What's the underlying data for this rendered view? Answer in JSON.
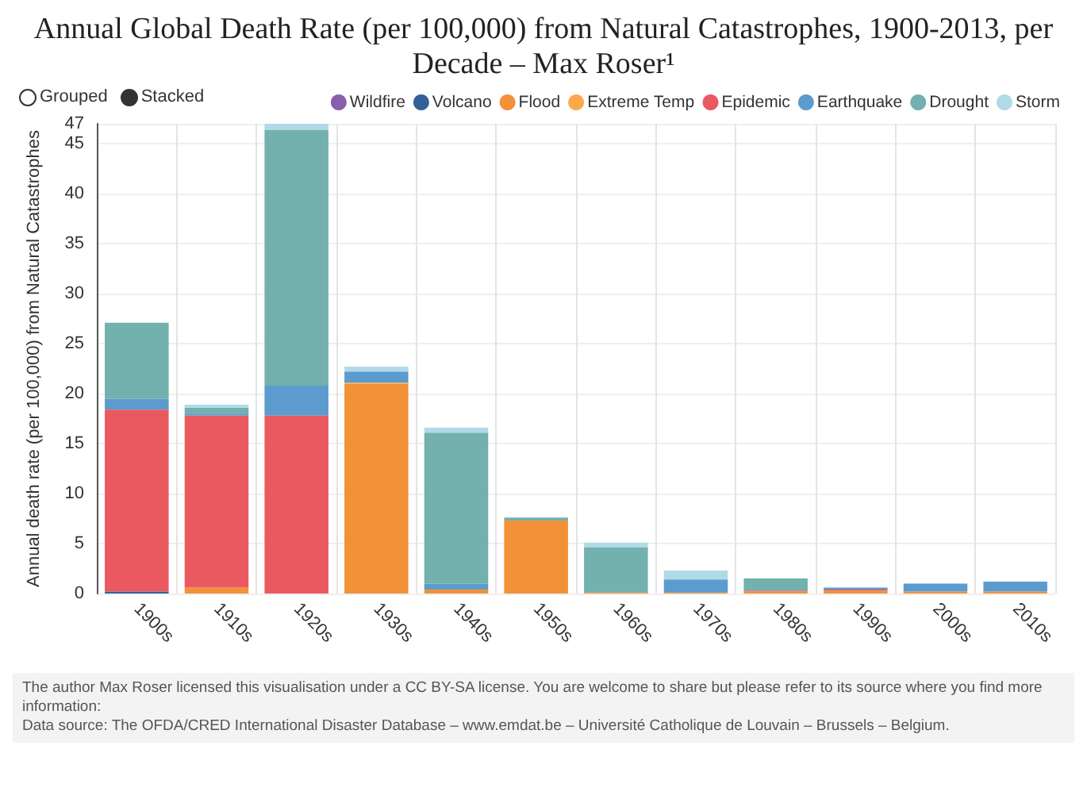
{
  "chart_data": {
    "type": "bar",
    "title": "Annual Global Death Rate (per 100,000) from Natural Catastrophes, 1900-2013, per Decade – Max Roser¹",
    "ylabel": "Annual death rate (per 100,000) from Natural Catastrophes",
    "categories": [
      "1900s",
      "1910s",
      "1920s",
      "1930s",
      "1940s",
      "1950s",
      "1960s",
      "1970s",
      "1980s",
      "1990s",
      "2000s",
      "2010s"
    ],
    "series": [
      {
        "name": "Wildfire",
        "color": "#7b4ea3",
        "values": [
          0,
          0,
          0,
          0,
          0,
          0,
          0,
          0,
          0,
          0,
          0,
          0
        ]
      },
      {
        "name": "Volcano",
        "color": "#1f4e8c",
        "values": [
          0.2,
          0,
          0,
          0,
          0,
          0,
          0,
          0,
          0,
          0,
          0,
          0
        ]
      },
      {
        "name": "Flood",
        "color": "#f28522",
        "values": [
          0,
          0.6,
          0,
          21.0,
          0.4,
          7.3,
          0.1,
          0.1,
          0.2,
          0.3,
          0.2,
          0.2
        ]
      },
      {
        "name": "Extreme Temp",
        "color": "#fb9e3a",
        "values": [
          0,
          0,
          0,
          0.1,
          0,
          0,
          0,
          0,
          0,
          0,
          0,
          0
        ]
      },
      {
        "name": "Epidemic",
        "color": "#e8474f",
        "values": [
          18.2,
          17.2,
          17.8,
          0,
          0,
          0,
          0,
          0,
          0.1,
          0.1,
          0,
          0
        ]
      },
      {
        "name": "Earthquake",
        "color": "#4a90c8",
        "values": [
          1.1,
          0.2,
          3.0,
          1.1,
          0.6,
          0,
          0,
          1.3,
          0,
          0.2,
          0.8,
          1.0
        ]
      },
      {
        "name": "Drought",
        "color": "#63a8a4",
        "values": [
          7.6,
          0.6,
          25.6,
          0,
          15.1,
          0.3,
          4.5,
          0,
          1.2,
          0,
          0,
          0
        ]
      },
      {
        "name": "Storm",
        "color": "#a9d6e5",
        "values": [
          0,
          0.3,
          0.6,
          0.5,
          0.5,
          0,
          0.5,
          0.9,
          null,
          null,
          null,
          null
        ]
      }
    ],
    "stacked": true,
    "ylim": [
      0,
      47
    ],
    "yticks": [
      0,
      5,
      10,
      15,
      20,
      25,
      30,
      35,
      40,
      45,
      47
    ],
    "grid": true,
    "legend": "top right",
    "annotations": [
      "Grouped",
      "Stacked",
      "The author Max Roser licensed this visualisation under a CC BY-SA license. You are welcome to share but please refer to its source where you find more information:",
      "Data source: The OFDA/CRED International Disaster Database – www.emdat.be – Université Catholique de Louvain – Brussels – Belgium."
    ]
  }
}
